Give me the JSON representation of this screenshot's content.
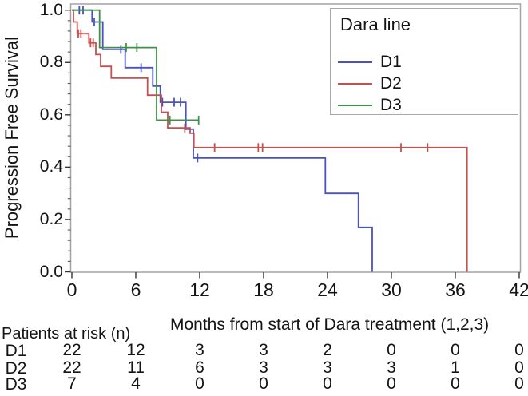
{
  "chart_data": {
    "type": "line",
    "subtype": "kaplan-meier-step",
    "title": "",
    "xlabel": "Months from start of Dara treatment (1,2,3)",
    "ylabel": "Progression Free Survival",
    "xlim": [
      0,
      42
    ],
    "ylim": [
      0.0,
      1.0
    ],
    "xticks": [
      0,
      6,
      12,
      18,
      24,
      30,
      36,
      42
    ],
    "ytick_values": [
      1.0,
      0.8,
      0.6,
      0.4,
      0.2,
      0.0
    ],
    "ytick_labels": [
      "1.0",
      "0.8",
      "0.6",
      "0.4",
      "0.2",
      "0.0"
    ],
    "y_minor_step": 0.04,
    "grid": false,
    "legend": {
      "title": "Dara line",
      "position": "top-right"
    },
    "axis_color": "#333333",
    "frame_color": "#a3a3a3",
    "series": [
      {
        "name": "D1",
        "color": "#4a52c2",
        "points": [
          [
            0,
            1.0
          ],
          [
            1.9,
            1.0
          ],
          [
            1.9,
            0.955
          ],
          [
            2.9,
            0.955
          ],
          [
            2.9,
            0.85
          ],
          [
            5.0,
            0.85
          ],
          [
            5.0,
            0.78
          ],
          [
            7.6,
            0.78
          ],
          [
            7.6,
            0.71
          ],
          [
            8.3,
            0.71
          ],
          [
            8.3,
            0.648
          ],
          [
            10.7,
            0.648
          ],
          [
            10.7,
            0.545
          ],
          [
            11.4,
            0.545
          ],
          [
            11.4,
            0.435
          ],
          [
            23.8,
            0.435
          ],
          [
            23.8,
            0.3
          ],
          [
            26.9,
            0.3
          ],
          [
            26.9,
            0.17
          ],
          [
            28.2,
            0.17
          ],
          [
            28.2,
            0.0
          ]
        ],
        "censors": [
          [
            0.7,
            1.0
          ],
          [
            1.05,
            1.0
          ],
          [
            2.1,
            0.955
          ],
          [
            4.6,
            0.85
          ],
          [
            6.5,
            0.78
          ],
          [
            8.5,
            0.648
          ],
          [
            9.6,
            0.648
          ],
          [
            10.2,
            0.648
          ],
          [
            11.8,
            0.435
          ]
        ]
      },
      {
        "name": "D2",
        "color": "#c5504e",
        "points": [
          [
            0,
            1.0
          ],
          [
            0.15,
            1.0
          ],
          [
            0.15,
            0.955
          ],
          [
            0.5,
            0.955
          ],
          [
            0.5,
            0.91
          ],
          [
            1.6,
            0.91
          ],
          [
            1.6,
            0.875
          ],
          [
            2.25,
            0.875
          ],
          [
            2.25,
            0.83
          ],
          [
            2.7,
            0.83
          ],
          [
            2.7,
            0.785
          ],
          [
            3.7,
            0.785
          ],
          [
            3.7,
            0.74
          ],
          [
            7.1,
            0.74
          ],
          [
            7.1,
            0.675
          ],
          [
            8.4,
            0.675
          ],
          [
            8.4,
            0.61
          ],
          [
            9.0,
            0.61
          ],
          [
            9.0,
            0.55
          ],
          [
            11.1,
            0.55
          ],
          [
            11.1,
            0.53
          ],
          [
            11.45,
            0.53
          ],
          [
            11.45,
            0.475
          ],
          [
            37.1,
            0.475
          ],
          [
            37.1,
            0.0
          ]
        ],
        "censors": [
          [
            0.6,
            0.91
          ],
          [
            0.85,
            0.91
          ],
          [
            1.75,
            0.875
          ],
          [
            2.0,
            0.875
          ],
          [
            10.6,
            0.55
          ],
          [
            13.4,
            0.475
          ],
          [
            17.5,
            0.475
          ],
          [
            17.9,
            0.475
          ],
          [
            30.9,
            0.475
          ],
          [
            33.4,
            0.475
          ]
        ]
      },
      {
        "name": "D3",
        "color": "#3f9147",
        "points": [
          [
            0,
            1.0
          ],
          [
            2.6,
            1.0
          ],
          [
            2.6,
            0.857
          ],
          [
            7.95,
            0.857
          ],
          [
            7.95,
            0.58
          ],
          [
            11.9,
            0.58
          ]
        ],
        "censors": [
          [
            5.1,
            0.857
          ],
          [
            6.1,
            0.857
          ],
          [
            9.2,
            0.58
          ],
          [
            11.9,
            0.58
          ]
        ]
      }
    ]
  },
  "risk_table": {
    "title": "Patients at risk (n)",
    "months": [
      0,
      6,
      12,
      18,
      24,
      30,
      36,
      42
    ],
    "rows": [
      {
        "label": "D1",
        "counts": [
          "22",
          "12",
          "3",
          "3",
          "2",
          "0",
          "0",
          "0"
        ]
      },
      {
        "label": "D2",
        "counts": [
          "22",
          "11",
          "6",
          "3",
          "3",
          "3",
          "1",
          "0"
        ]
      },
      {
        "label": "D3",
        "counts": [
          "7",
          "4",
          "0",
          "0",
          "0",
          "0",
          "0",
          "0"
        ]
      }
    ]
  }
}
